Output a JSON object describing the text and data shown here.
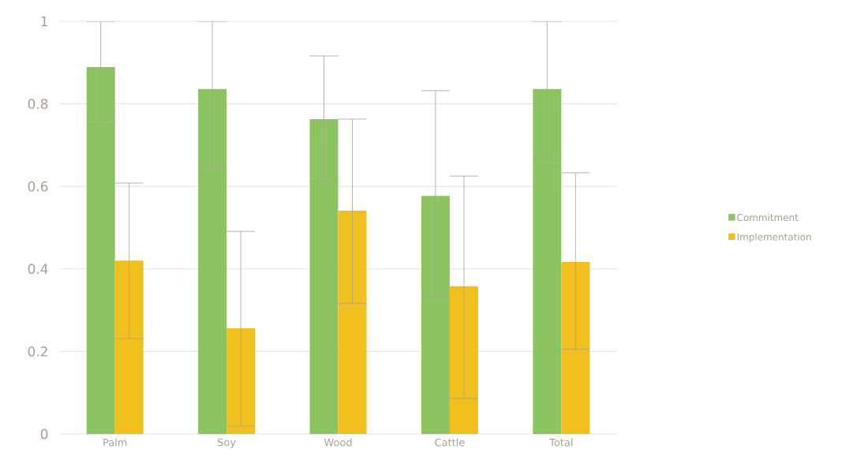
{
  "chart_data": {
    "type": "bar",
    "categories": [
      "Palm",
      "Soy",
      "Wood",
      "Cattle",
      "Total"
    ],
    "series": [
      {
        "name": "Commitment",
        "color": "#8dc462",
        "values": [
          0.889,
          0.836,
          0.763,
          0.577,
          0.836
        ],
        "errors": [
          [
            0.75,
            1.0
          ],
          [
            0.65,
            1.0
          ],
          [
            0.612,
            0.916
          ],
          [
            0.331,
            0.832
          ],
          [
            0.667,
            1.0
          ]
        ]
      },
      {
        "name": "Implementation",
        "color": "#f2c01e",
        "values": [
          0.42,
          0.256,
          0.541,
          0.358,
          0.417
        ],
        "errors": [
          [
            0.231,
            0.608
          ],
          [
            0.019,
            0.491
          ],
          [
            0.317,
            0.763
          ],
          [
            0.086,
            0.625
          ],
          [
            0.205,
            0.633
          ]
        ]
      }
    ],
    "ylim": [
      0,
      1
    ],
    "yticks": [
      0,
      0.2,
      0.4,
      0.6,
      0.8,
      1
    ],
    "grid": "y",
    "legend": "right"
  }
}
